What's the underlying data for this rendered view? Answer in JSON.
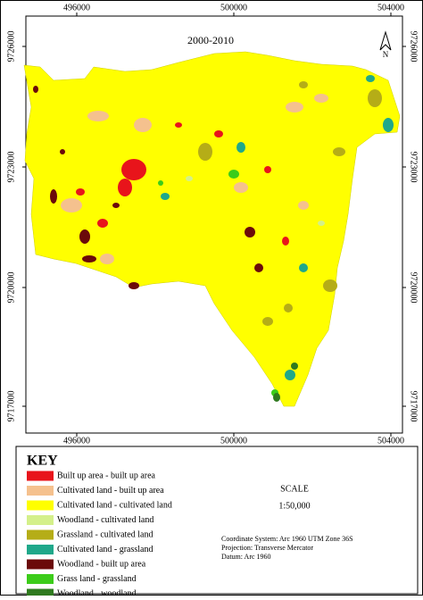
{
  "title": "2000-2010",
  "north": "N",
  "x_labels_top": [
    496000,
    500000,
    504000
  ],
  "x_labels_bottom": [
    496000,
    500000,
    504000
  ],
  "y_labels_left": [
    9726000,
    9723000,
    9720000,
    9717000
  ],
  "y_labels_right": [
    9726000,
    9723000,
    9720000,
    9717000
  ],
  "key": {
    "title": "KEY",
    "items": [
      {
        "label": "Built up area - built up area",
        "color": "#e8141b"
      },
      {
        "label": "Cultivated land - built up area",
        "color": "#f5c18e"
      },
      {
        "label": "Cultivated land - cultivated land",
        "color": "#ffff00"
      },
      {
        "label": "Woodland - cultivated land",
        "color": "#d4f08a"
      },
      {
        "label": "Grassland - cultivated land",
        "color": "#b5ad17"
      },
      {
        "label": "Cultivated land - grassland",
        "color": "#1fa88a"
      },
      {
        "label": "Woodland - built up area",
        "color": "#6b0a0a"
      },
      {
        "label": "Grass land - grassland",
        "color": "#3ccc1a"
      },
      {
        "label": "Woodland - woodland",
        "color": "#2f7a1f"
      }
    ]
  },
  "scale": {
    "title": "SCALE",
    "ratio": "1:50,000"
  },
  "projection": [
    "Coordinate System: Arc 1960 UTM Zone 36S",
    "Projection: Transverse Mercator",
    "Datum: Arc 1960"
  ]
}
